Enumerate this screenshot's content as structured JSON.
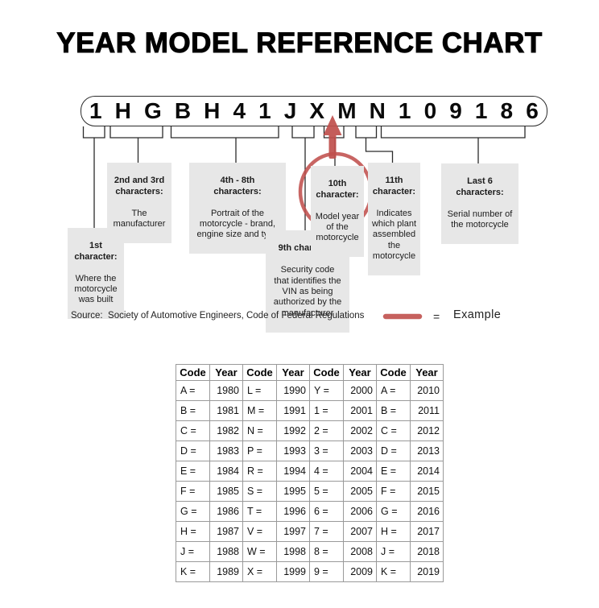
{
  "title": "YEAR MODEL REFERENCE CHART",
  "vin": {
    "characters": [
      "1",
      "H",
      "G",
      "B",
      "H",
      "4",
      "1",
      "J",
      "X",
      "M",
      "N",
      "1",
      "0",
      "9",
      "1",
      "8",
      "6"
    ]
  },
  "callouts": {
    "first": {
      "heading": "1st\ncharacter:",
      "body": "Where the\nmotorcycle\nwas built"
    },
    "second_third": {
      "heading": "2nd and 3rd\ncharacters:",
      "body": "The\nmanufacturer"
    },
    "fourth_eighth": {
      "heading": "4th - 8th\ncharacters:",
      "body": "Portrait of the\nmotorcycle - brand,\nengine size and type"
    },
    "ninth": {
      "heading": "9th character:",
      "body": "Security code\nthat identifies the\nVIN as being\nauthorized by the\nmanufacturer"
    },
    "tenth": {
      "heading": "10th\ncharacter:",
      "body": "Model year\nof the\nmotorcycle"
    },
    "eleventh": {
      "heading": "11th\ncharacter:",
      "body": "Indicates\nwhich plant\nassembled\nthe\nmotorcycle"
    },
    "last_six": {
      "heading": "Last 6\ncharacters:",
      "body": "Serial number of\nthe motorcycle"
    }
  },
  "source_line": "Source:  Society of Automotive Engineers, Code of Federal Regulations",
  "legend": {
    "equals": "=",
    "label": "Example"
  },
  "colors": {
    "accent_red": "#c0504d",
    "line_black": "#2b2b2b",
    "callout_bg": "#e7e7e7",
    "table_border": "#9a9a9a"
  },
  "table": {
    "headers": [
      "Code",
      "Year",
      "Code",
      "Year",
      "Code",
      "Year",
      "Code",
      "Year"
    ],
    "rows": [
      [
        "A =",
        "1980",
        "L =",
        "1990",
        "Y =",
        "2000",
        "A =",
        "2010"
      ],
      [
        "B =",
        "1981",
        "M =",
        "1991",
        "1 =",
        "2001",
        "B =",
        "2011"
      ],
      [
        "C =",
        "1982",
        "N =",
        "1992",
        "2 =",
        "2002",
        "C =",
        "2012"
      ],
      [
        "D =",
        "1983",
        "P =",
        "1993",
        "3 =",
        "2003",
        "D =",
        "2013"
      ],
      [
        "E =",
        "1984",
        "R =",
        "1994",
        "4 =",
        "2004",
        "E =",
        "2014"
      ],
      [
        "F =",
        "1985",
        "S =",
        "1995",
        "5 =",
        "2005",
        "F =",
        "2015"
      ],
      [
        "G =",
        "1986",
        "T =",
        "1996",
        "6 =",
        "2006",
        "G =",
        "2016"
      ],
      [
        "H =",
        "1987",
        "V =",
        "1997",
        "7 =",
        "2007",
        "H =",
        "2017"
      ],
      [
        "J =",
        "1988",
        "W =",
        "1998",
        "8 =",
        "2008",
        "J =",
        "2018"
      ],
      [
        "K =",
        "1989",
        "X =",
        "1999",
        "9 =",
        "2009",
        "K =",
        "2019"
      ]
    ],
    "highlighted_cell": "M = 1991"
  }
}
